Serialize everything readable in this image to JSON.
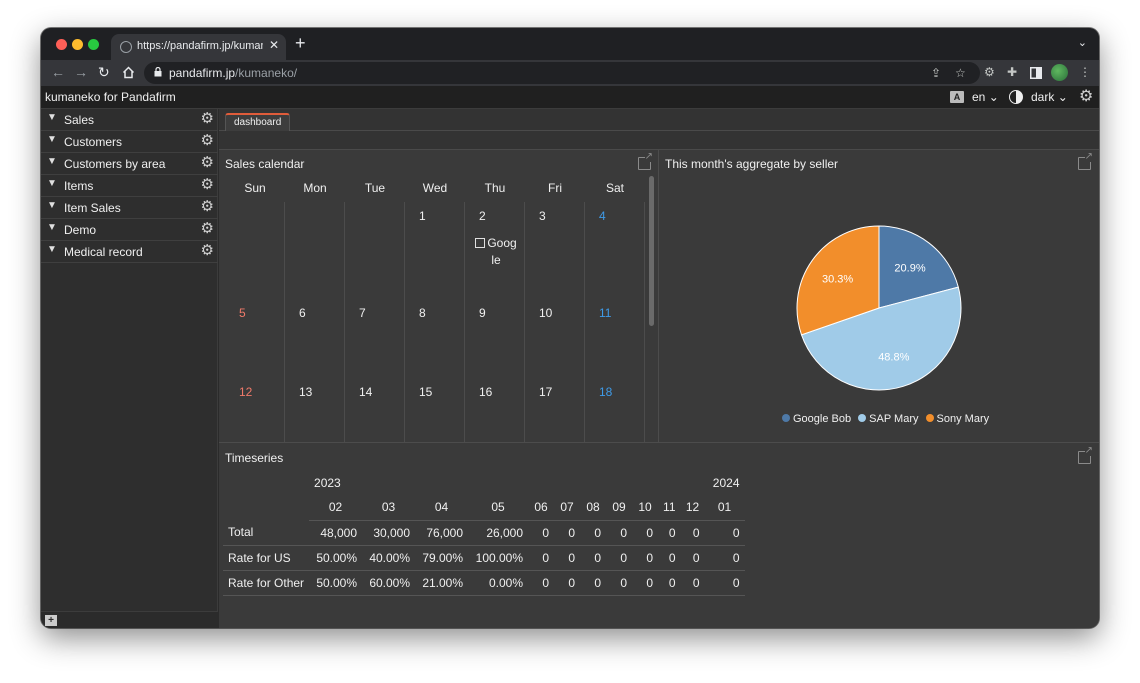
{
  "browser": {
    "tab_title": "https://pandafirm.jp/kumaneko/",
    "tab_close": "✕",
    "new_tab": "+",
    "url_host": "pandafirm.jp",
    "url_path": "/kumaneko/"
  },
  "app": {
    "title": "kumaneko for Pandafirm",
    "language": "en",
    "theme": "dark"
  },
  "sidebar": {
    "items": [
      {
        "label": "Sales"
      },
      {
        "label": "Customers"
      },
      {
        "label": "Customers by area"
      },
      {
        "label": "Items"
      },
      {
        "label": "Item Sales"
      },
      {
        "label": "Demo"
      },
      {
        "label": "Medical record"
      }
    ]
  },
  "dashboard_tab": "dashboard",
  "calendar": {
    "title": "Sales calendar",
    "weekdays": [
      "Sun",
      "Mon",
      "Tue",
      "Wed",
      "Thu",
      "Fri",
      "Sat"
    ],
    "weeks": [
      [
        "",
        "",
        "",
        "1",
        "2",
        "3",
        "4"
      ],
      [
        "5",
        "6",
        "7",
        "8",
        "9",
        "10",
        "11"
      ],
      [
        "12",
        "13",
        "14",
        "15",
        "16",
        "17",
        "18"
      ]
    ],
    "event": {
      "day": "2",
      "line1": "Goog",
      "line2": "le"
    }
  },
  "pie": {
    "title": "This month's aggregate by seller",
    "slices": [
      {
        "name": "Google Bob",
        "value": 20.9,
        "label": "20.9%",
        "color": "#4e79a7"
      },
      {
        "name": "SAP Mary",
        "value": 48.8,
        "label": "48.8%",
        "color": "#a0cbe8"
      },
      {
        "name": "Sony Mary",
        "value": 30.3,
        "label": "30.3%",
        "color": "#f28e2b"
      }
    ]
  },
  "timeseries": {
    "title": "Timeseries",
    "year_2023": "2023",
    "year_2024": "2024",
    "months": [
      "02",
      "03",
      "04",
      "05",
      "06",
      "07",
      "08",
      "09",
      "10",
      "11",
      "12",
      "01"
    ],
    "rows": [
      {
        "label": "Total",
        "values": [
          "48,000",
          "30,000",
          "76,000",
          "26,000",
          "0",
          "0",
          "0",
          "0",
          "0",
          "0",
          "0",
          "0"
        ]
      },
      {
        "label": "Rate for US",
        "values": [
          "50.00%",
          "40.00%",
          "79.00%",
          "100.00%",
          "0",
          "0",
          "0",
          "0",
          "0",
          "0",
          "0",
          "0"
        ]
      },
      {
        "label": "Rate for Other",
        "values": [
          "50.00%",
          "60.00%",
          "21.00%",
          "0.00%",
          "0",
          "0",
          "0",
          "0",
          "0",
          "0",
          "0",
          "0"
        ]
      }
    ]
  }
}
